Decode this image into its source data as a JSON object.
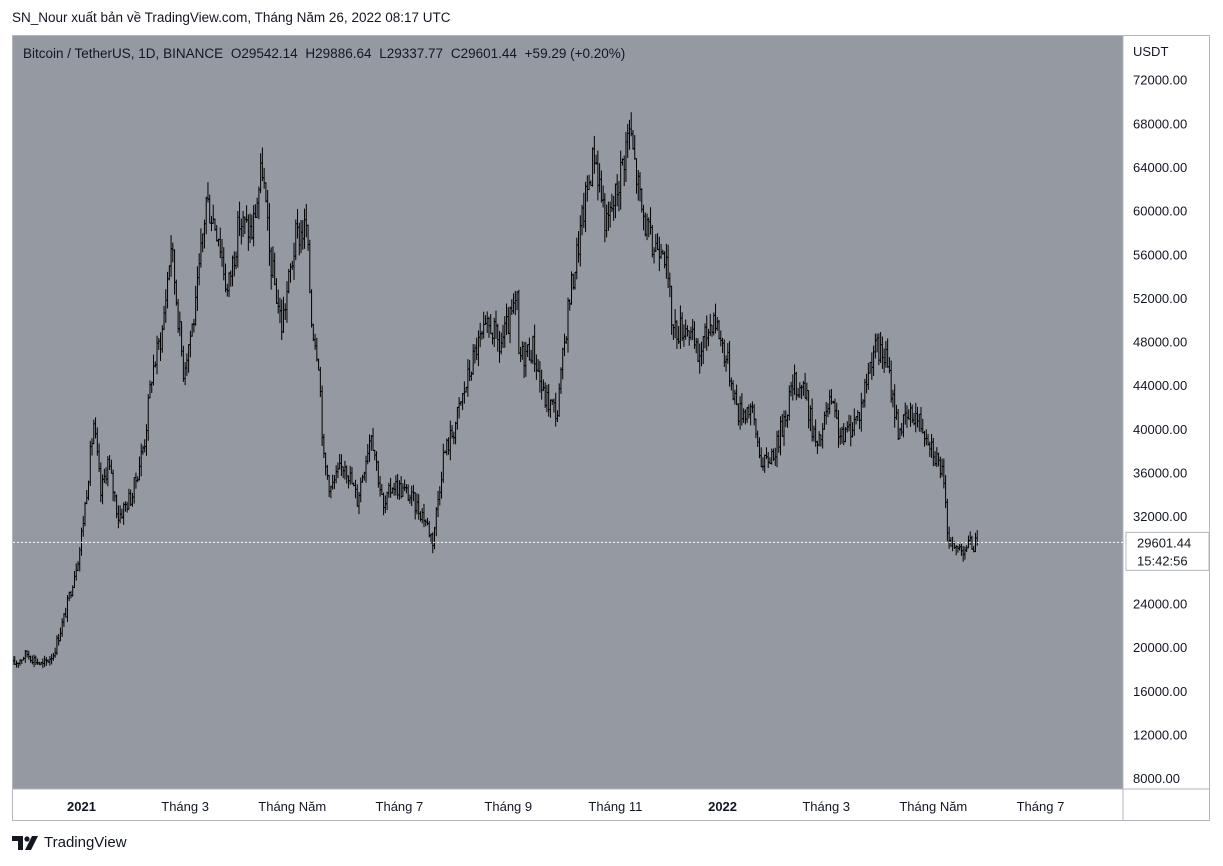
{
  "header": {
    "text": "SN_Nour xuất bản về TradingView.com, Tháng Năm 26, 2022 08:17 UTC"
  },
  "legend": {
    "symbol": "Bitcoin / TetherUS, 1D, BINANCE",
    "open": "O29542.14",
    "high": "H29886.64",
    "low": "L29337.77",
    "close": "C29601.44",
    "change": "+59.29 (+0.20%)"
  },
  "price_axis": {
    "currency": "USDT",
    "last_price": "29601.44",
    "countdown": "15:42:56"
  },
  "footer": {
    "brand": "TradingView"
  },
  "colors": {
    "plot_background": "#959aa2",
    "bars": "#000000",
    "axis_background": "#ffffff",
    "price_line": "#ffffff"
  },
  "chart_data": {
    "type": "ohlc",
    "title": "Bitcoin / TetherUS, 1D, BINANCE",
    "y_axis": {
      "label": "USDT",
      "ticks": [
        8000,
        12000,
        16000,
        20000,
        24000,
        28000,
        32000,
        36000,
        40000,
        44000,
        48000,
        52000,
        56000,
        60000,
        64000,
        68000,
        72000
      ],
      "tick_labels": [
        "8000.00",
        "12000.00",
        "16000.00",
        "20000.00",
        "24000.00",
        "",
        "32000.00",
        "36000.00",
        "40000.00",
        "44000.00",
        "48000.00",
        "52000.00",
        "56000.00",
        "60000.00",
        "64000.00",
        "68000.00",
        "72000.00"
      ],
      "range": [
        7000,
        76000
      ]
    },
    "x_axis": {
      "range": [
        "2020-11-23",
        "2022-08-17"
      ],
      "ticks": [
        {
          "date": "2021-01-01",
          "label": "2021",
          "bold": true
        },
        {
          "date": "2021-03-01",
          "label": "Tháng 3",
          "bold": false
        },
        {
          "date": "2021-05-01",
          "label": "Tháng Năm",
          "bold": false
        },
        {
          "date": "2021-07-01",
          "label": "Tháng 7",
          "bold": false
        },
        {
          "date": "2021-09-01",
          "label": "Tháng 9",
          "bold": false
        },
        {
          "date": "2021-11-01",
          "label": "Tháng 11",
          "bold": false
        },
        {
          "date": "2022-01-01",
          "label": "2022",
          "bold": true
        },
        {
          "date": "2022-03-01",
          "label": "Tháng 3",
          "bold": false
        },
        {
          "date": "2022-05-01",
          "label": "Tháng Năm",
          "bold": false
        },
        {
          "date": "2022-07-01",
          "label": "Tháng 7",
          "bold": false
        }
      ]
    },
    "start_date": "2020-11-23",
    "last_close": 29601.44,
    "key_points": [
      [
        "2020-11-23",
        18400
      ],
      [
        "2020-12-01",
        19400
      ],
      [
        "2020-12-10",
        18300
      ],
      [
        "2020-12-16",
        19400
      ],
      [
        "2020-12-23",
        23200
      ],
      [
        "2020-12-31",
        29000
      ],
      [
        "2021-01-03",
        33000
      ],
      [
        "2021-01-08",
        40500
      ],
      [
        "2021-01-12",
        34000
      ],
      [
        "2021-01-16",
        37000
      ],
      [
        "2021-01-22",
        32000
      ],
      [
        "2021-01-30",
        34000
      ],
      [
        "2021-02-06",
        39000
      ],
      [
        "2021-02-10",
        45000
      ],
      [
        "2021-02-16",
        49000
      ],
      [
        "2021-02-21",
        57000
      ],
      [
        "2021-02-28",
        45500
      ],
      [
        "2021-03-07",
        51000
      ],
      [
        "2021-03-13",
        61000
      ],
      [
        "2021-03-20",
        58000
      ],
      [
        "2021-03-25",
        52500
      ],
      [
        "2021-04-01",
        59000
      ],
      [
        "2021-04-08",
        58000
      ],
      [
        "2021-04-14",
        64000
      ],
      [
        "2021-04-18",
        56000
      ],
      [
        "2021-04-25",
        49500
      ],
      [
        "2021-05-03",
        57500
      ],
      [
        "2021-05-09",
        58500
      ],
      [
        "2021-05-12",
        50000
      ],
      [
        "2021-05-16",
        46500
      ],
      [
        "2021-05-19",
        37000
      ],
      [
        "2021-05-23",
        34500
      ],
      [
        "2021-05-31",
        37000
      ],
      [
        "2021-06-07",
        33500
      ],
      [
        "2021-06-15",
        40000
      ],
      [
        "2021-06-22",
        32500
      ],
      [
        "2021-06-27",
        35000
      ],
      [
        "2021-07-06",
        34000
      ],
      [
        "2021-07-15",
        32000
      ],
      [
        "2021-07-20",
        29800
      ],
      [
        "2021-07-26",
        37500
      ],
      [
        "2021-08-01",
        40000
      ],
      [
        "2021-08-07",
        43500
      ],
      [
        "2021-08-14",
        47500
      ],
      [
        "2021-08-22",
        49500
      ],
      [
        "2021-08-27",
        47500
      ],
      [
        "2021-09-06",
        51500
      ],
      [
        "2021-09-07",
        46500
      ],
      [
        "2021-09-15",
        47500
      ],
      [
        "2021-09-21",
        43000
      ],
      [
        "2021-09-29",
        41500
      ],
      [
        "2021-10-05",
        51000
      ],
      [
        "2021-10-15",
        61000
      ],
      [
        "2021-10-20",
        65500
      ],
      [
        "2021-10-27",
        58500
      ],
      [
        "2021-11-01",
        61300
      ],
      [
        "2021-11-09",
        67500
      ],
      [
        "2021-11-16",
        60000
      ],
      [
        "2021-11-22",
        56500
      ],
      [
        "2021-11-28",
        57500
      ],
      [
        "2021-12-04",
        49000
      ],
      [
        "2021-12-12",
        49500
      ],
      [
        "2021-12-18",
        46500
      ],
      [
        "2021-12-27",
        50500
      ],
      [
        "2022-01-04",
        46000
      ],
      [
        "2022-01-10",
        41500
      ],
      [
        "2022-01-17",
        42000
      ],
      [
        "2022-01-24",
        36500
      ],
      [
        "2022-02-01",
        38500
      ],
      [
        "2022-02-10",
        44000
      ],
      [
        "2022-02-16",
        44000
      ],
      [
        "2022-02-24",
        38000
      ],
      [
        "2022-03-03",
        42500
      ],
      [
        "2022-03-10",
        39000
      ],
      [
        "2022-03-20",
        41500
      ],
      [
        "2022-03-28",
        47500
      ],
      [
        "2022-04-04",
        46500
      ],
      [
        "2022-04-11",
        40000
      ],
      [
        "2022-04-20",
        41500
      ],
      [
        "2022-04-28",
        39500
      ],
      [
        "2022-05-06",
        36000
      ],
      [
        "2022-05-09",
        31000
      ],
      [
        "2022-05-12",
        28900
      ],
      [
        "2022-05-18",
        29200
      ],
      [
        "2022-05-26",
        29601
      ]
    ]
  }
}
